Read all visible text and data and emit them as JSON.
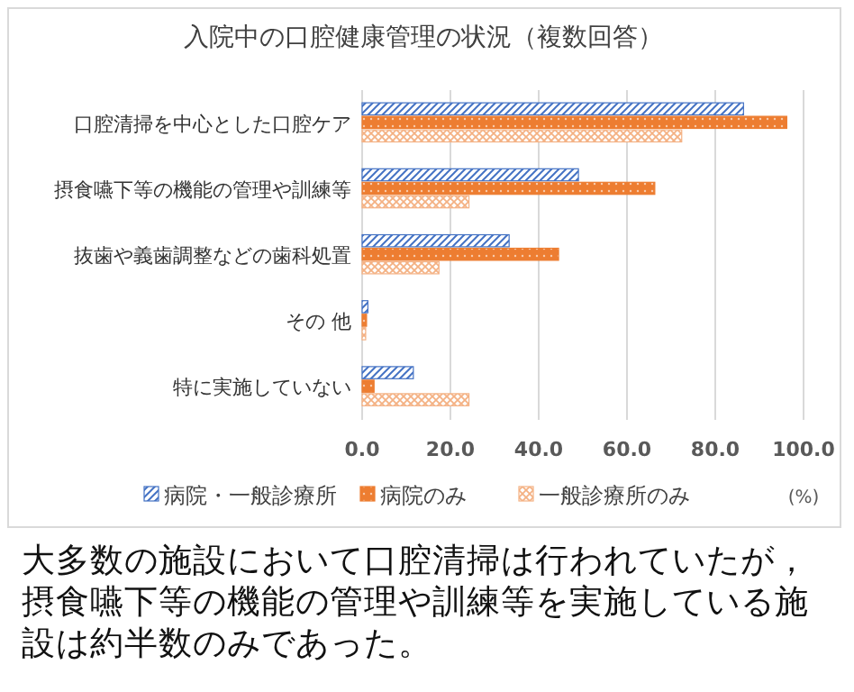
{
  "chart_data": {
    "type": "bar",
    "orientation": "horizontal",
    "title": "入院中の口腔健康管理の状況（複数回答）",
    "xlabel": "(%)",
    "categories": [
      "口腔清掃を中心とした口腔ケア",
      "摂食嚥下等の機能の管理や訓練等",
      "抜歯や義歯調整などの歯科処置",
      "その 他",
      "特に実施していない"
    ],
    "series": [
      {
        "name": "病院・一般診療所",
        "color": "#4472c4",
        "values": [
          86.4,
          49.0,
          33.3,
          1.3,
          11.6
        ]
      },
      {
        "name": "病院のみ",
        "color": "#ed7d31",
        "values": [
          96.2,
          66.3,
          44.5,
          1.0,
          2.7
        ]
      },
      {
        "name": "一般診療所のみ",
        "color": "#f4b183",
        "values": [
          72.4,
          24.2,
          17.4,
          0.8,
          24.2
        ]
      }
    ],
    "xlim": [
      0,
      100
    ],
    "xticks": [
      {
        "value": 0,
        "label": "0.0"
      },
      {
        "value": 20,
        "label": "20.0"
      },
      {
        "value": 40,
        "label": "40.0"
      },
      {
        "value": 60,
        "label": "60.0"
      },
      {
        "value": 80,
        "label": "80.0"
      },
      {
        "value": 100,
        "label": "100.0"
      }
    ],
    "grid": "x",
    "legend": "bottom",
    "annotations": [
      "大多数の施設において口腔清掃は行われていたが，摂食嚥下等の機能の管理や訓練等を実施している施設は約半数のみであった。"
    ]
  }
}
